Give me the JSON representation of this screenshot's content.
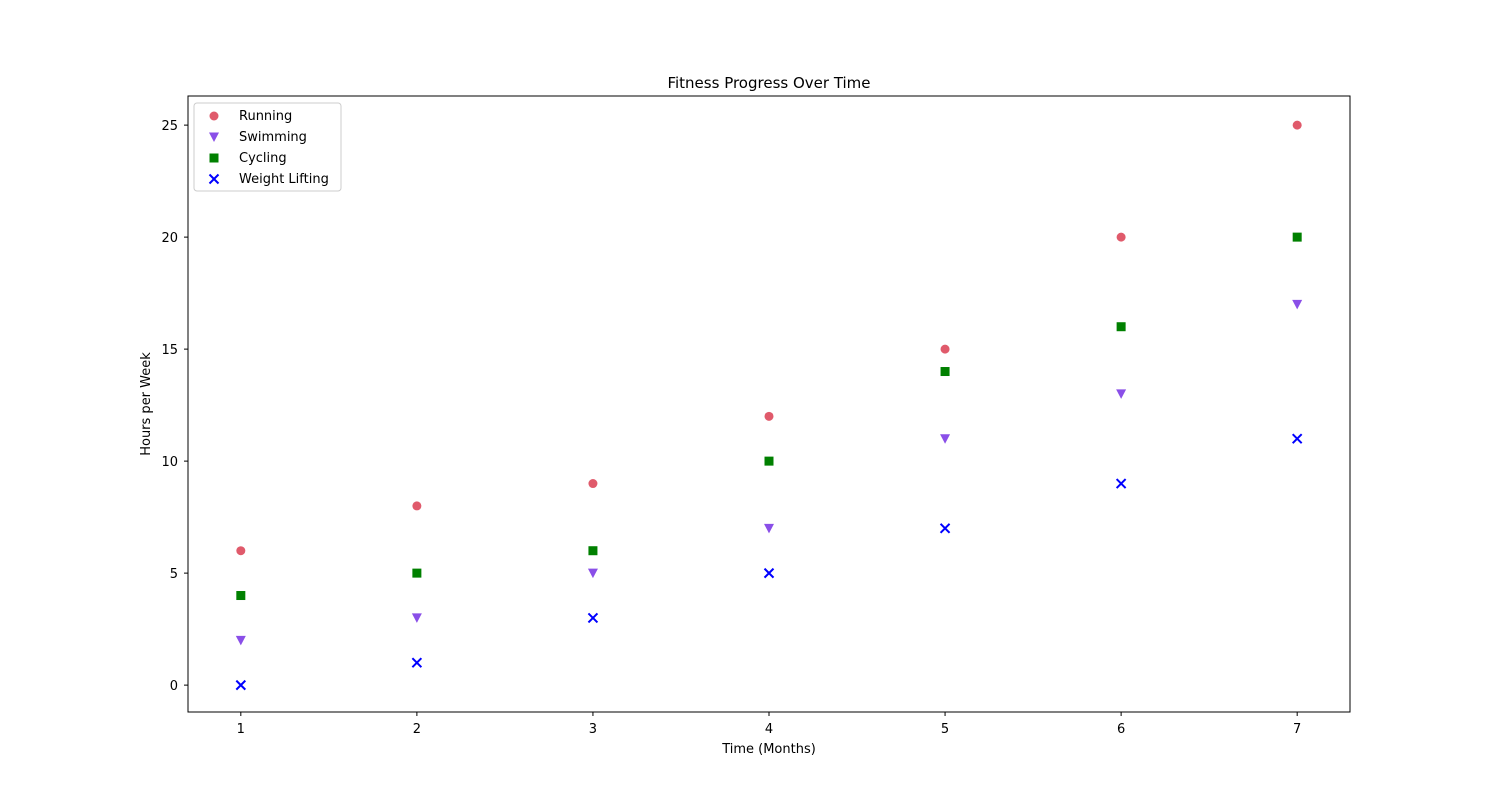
{
  "chart_data": {
    "type": "scatter",
    "title": "Fitness Progress Over Time",
    "xlabel": "Time (Months)",
    "ylabel": "Hours per Week",
    "x": [
      1,
      2,
      3,
      4,
      5,
      6,
      7
    ],
    "xlim": [
      0.7,
      7.3
    ],
    "ylim": [
      -1.2,
      26.3
    ],
    "xticks": [
      1,
      2,
      3,
      4,
      5,
      6,
      7
    ],
    "yticks": [
      0,
      5,
      10,
      15,
      20,
      25
    ],
    "grid": false,
    "legend_position": "top-left",
    "series": [
      {
        "name": "Running",
        "marker": "circle",
        "color": "#e05a6b",
        "values": [
          6,
          8,
          9,
          12,
          15,
          20,
          25
        ]
      },
      {
        "name": "Swimming",
        "marker": "triangle-down",
        "color": "#8a4fe8",
        "values": [
          2,
          3,
          5,
          7,
          11,
          13,
          17
        ]
      },
      {
        "name": "Cycling",
        "marker": "square",
        "color": "#008000",
        "values": [
          4,
          5,
          6,
          10,
          14,
          16,
          20
        ]
      },
      {
        "name": "Weight Lifting",
        "marker": "x",
        "color": "#0000ff",
        "values": [
          0,
          1,
          3,
          5,
          7,
          9,
          11
        ]
      }
    ]
  }
}
